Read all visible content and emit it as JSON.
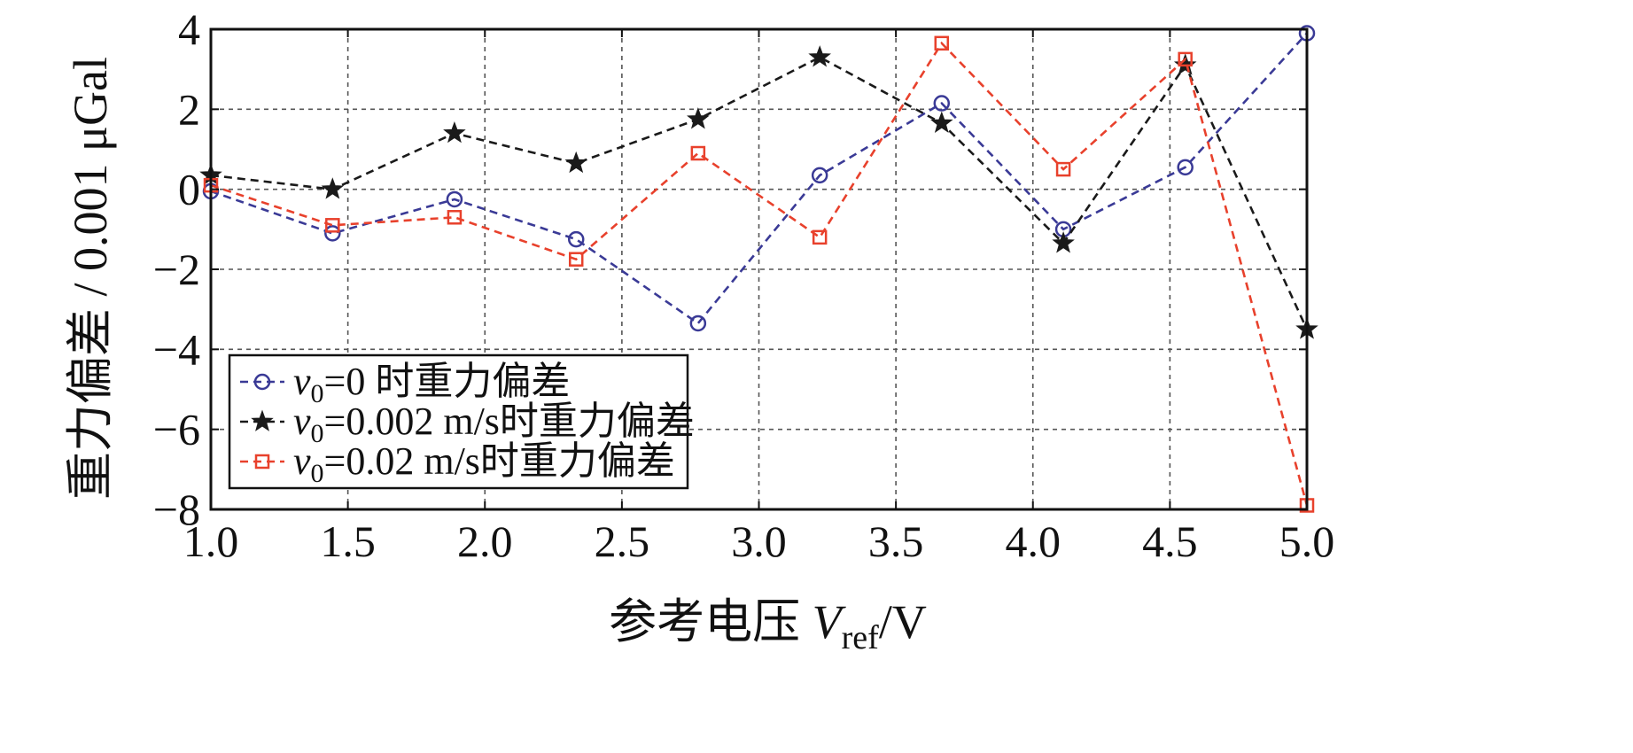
{
  "chart_data": {
    "type": "line",
    "title": "",
    "xlabel": "参考电压 V_ref/V",
    "xlabel_parts": {
      "prefix": "参考电压 ",
      "symbol": "V",
      "subscript": "ref",
      "suffix": "/V"
    },
    "ylabel": "重力偏差 / 0.001 μGal",
    "xlim": [
      1.0,
      5.0
    ],
    "ylim": [
      -8,
      4
    ],
    "xticks": [
      1.0,
      1.5,
      2.0,
      2.5,
      3.0,
      3.5,
      4.0,
      4.5,
      5.0
    ],
    "xtick_labels": [
      "1.0",
      "1.5",
      "2.0",
      "2.5",
      "3.0",
      "3.5",
      "4.0",
      "4.5",
      "5.0"
    ],
    "yticks": [
      4,
      2,
      0,
      -2,
      -4,
      -6,
      -8
    ],
    "ytick_labels": [
      "4",
      "2",
      "0",
      "−2",
      "−4",
      "−6",
      "−8"
    ],
    "grid": true,
    "legend_position": "lower-left",
    "x": [
      1.0,
      1.444,
      1.889,
      2.333,
      2.778,
      3.222,
      3.667,
      4.111,
      4.556,
      5.0
    ],
    "series": [
      {
        "name": "v0=0 时重力偏差",
        "label_parts": {
          "symbol": "v",
          "subscript": "0",
          "rest": "=0 时重力偏差"
        },
        "color": "#3a3a96",
        "marker": "circle",
        "values": [
          -0.05,
          -1.1,
          -0.25,
          -1.25,
          -3.35,
          0.35,
          2.15,
          -1.0,
          0.55,
          3.9
        ]
      },
      {
        "name": "v0=0.002 m/s时重力偏差",
        "label_parts": {
          "symbol": "v",
          "subscript": "0",
          "rest": "=0.002 m/s时重力偏差"
        },
        "color": "#1a1a1a",
        "marker": "star",
        "values": [
          0.35,
          0.0,
          1.4,
          0.65,
          1.75,
          3.3,
          1.65,
          -1.35,
          3.1,
          -3.5
        ]
      },
      {
        "name": "v0=0.02 m/s时重力偏差",
        "label_parts": {
          "symbol": "v",
          "subscript": "0",
          "rest": "=0.02 m/s时重力偏差"
        },
        "color": "#e8412c",
        "marker": "square",
        "values": [
          0.1,
          -0.9,
          -0.7,
          -1.75,
          0.9,
          -1.2,
          3.65,
          0.5,
          3.25,
          -7.9
        ]
      }
    ]
  }
}
